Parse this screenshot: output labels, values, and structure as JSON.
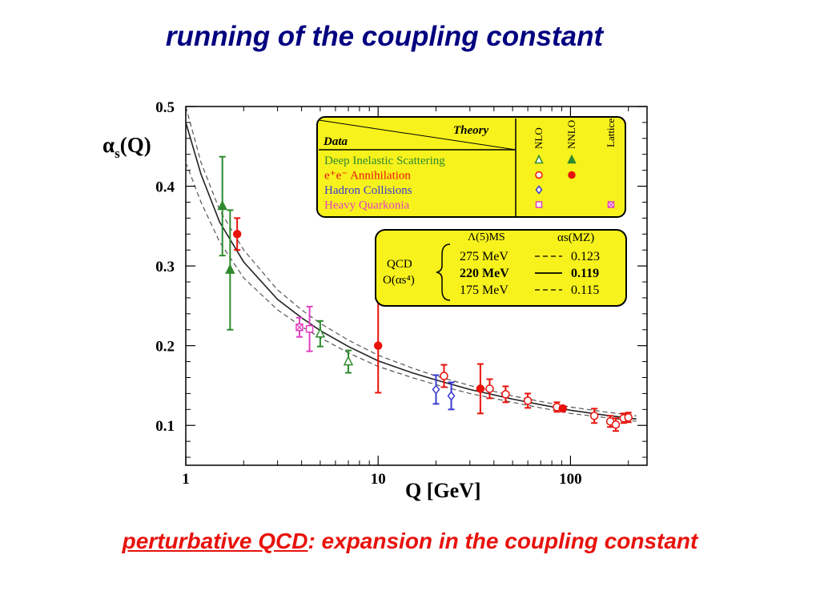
{
  "slide": {
    "title": "running of the coupling constant",
    "caption_underlined": "perturbative QCD",
    "caption_rest": ": expansion in the coupling constant"
  },
  "chart_data": {
    "type": "scatter",
    "ylabel": "αs(Q)",
    "xlabel": "Q [GeV]",
    "x_scale": "log",
    "xlim": [
      1,
      250
    ],
    "ylim": [
      0.05,
      0.5
    ],
    "x_ticks": [
      {
        "value": 1,
        "label": "1"
      },
      {
        "value": 10,
        "label": "10"
      },
      {
        "value": 100,
        "label": "100"
      }
    ],
    "y_ticks": [
      {
        "value": 0.1,
        "label": "0.1"
      },
      {
        "value": 0.2,
        "label": "0.2"
      },
      {
        "value": 0.3,
        "label": "0.3"
      },
      {
        "value": 0.4,
        "label": "0.4"
      },
      {
        "value": 0.5,
        "label": "0.5"
      }
    ],
    "legend_placement": "top-right",
    "legend": {
      "header_data": "Data",
      "header_theory": "Theory",
      "columns": [
        "NLO",
        "NNLO",
        "Lattice"
      ],
      "rows": [
        {
          "label": "Deep Inelastic Scattering",
          "color": "#2e8b2e",
          "markers": [
            "open-triangle",
            "filled-triangle",
            ""
          ]
        },
        {
          "label": "e⁺e⁻ Annihilation",
          "color": "#e8120c",
          "markers": [
            "open-circle",
            "filled-circle",
            ""
          ]
        },
        {
          "label": "Hadron Collisions",
          "color": "#3a3ad0",
          "markers": [
            "open-diamond",
            "",
            ""
          ]
        },
        {
          "label": "Heavy Quarkonia",
          "color": "#e040c0",
          "markers": [
            "open-square",
            "",
            "crossed-square"
          ]
        }
      ]
    },
    "qcd_box": {
      "label_line1": "QCD",
      "label_line2": "O(αs⁴)",
      "col1_header": "Λ(5)MS",
      "col2_header": "αs(MZ)",
      "rows": [
        {
          "lambda": "275 MeV",
          "style": "dashed",
          "alpha": "0.123",
          "bold": false
        },
        {
          "lambda": "220 MeV",
          "style": "solid",
          "alpha": "0.119",
          "bold": true
        },
        {
          "lambda": "175 MeV",
          "style": "dashed",
          "alpha": "0.115",
          "bold": false
        }
      ]
    },
    "curves": [
      {
        "name": "275 MeV",
        "style": "dashed",
        "points": [
          [
            1.0,
            0.5
          ],
          [
            1.2,
            0.43
          ],
          [
            1.5,
            0.37
          ],
          [
            2,
            0.32
          ],
          [
            3,
            0.27
          ],
          [
            4,
            0.245
          ],
          [
            5,
            0.228
          ],
          [
            7,
            0.207
          ],
          [
            10,
            0.188
          ],
          [
            15,
            0.172
          ],
          [
            20,
            0.162
          ],
          [
            30,
            0.15
          ],
          [
            50,
            0.137
          ],
          [
            70,
            0.13
          ],
          [
            100,
            0.123
          ],
          [
            150,
            0.117
          ],
          [
            220,
            0.112
          ]
        ]
      },
      {
        "name": "220 MeV",
        "style": "solid",
        "points": [
          [
            1.0,
            0.48
          ],
          [
            1.2,
            0.415
          ],
          [
            1.5,
            0.355
          ],
          [
            2,
            0.305
          ],
          [
            3,
            0.258
          ],
          [
            4,
            0.235
          ],
          [
            5,
            0.219
          ],
          [
            7,
            0.199
          ],
          [
            10,
            0.181
          ],
          [
            15,
            0.166
          ],
          [
            20,
            0.157
          ],
          [
            30,
            0.145
          ],
          [
            50,
            0.133
          ],
          [
            70,
            0.126
          ],
          [
            100,
            0.119
          ],
          [
            150,
            0.113
          ],
          [
            220,
            0.108
          ]
        ]
      },
      {
        "name": "175 MeV",
        "style": "dashed",
        "points": [
          [
            1.0,
            0.43
          ],
          [
            1.2,
            0.38
          ],
          [
            1.5,
            0.33
          ],
          [
            2,
            0.285
          ],
          [
            3,
            0.245
          ],
          [
            4,
            0.224
          ],
          [
            5,
            0.21
          ],
          [
            7,
            0.191
          ],
          [
            10,
            0.174
          ],
          [
            15,
            0.16
          ],
          [
            20,
            0.151
          ],
          [
            30,
            0.14
          ],
          [
            50,
            0.129
          ],
          [
            70,
            0.122
          ],
          [
            100,
            0.115
          ],
          [
            150,
            0.11
          ],
          [
            220,
            0.105
          ]
        ]
      }
    ],
    "points": [
      {
        "x": 1.55,
        "y": 0.375,
        "err": 0.062,
        "marker": "filled-triangle",
        "color": "#2e8b2e"
      },
      {
        "x": 1.7,
        "y": 0.295,
        "err": 0.075,
        "marker": "filled-triangle",
        "color": "#2e8b2e"
      },
      {
        "x": 1.85,
        "y": 0.34,
        "err": 0.02,
        "marker": "filled-circle",
        "color": "#e8120c"
      },
      {
        "x": 3.9,
        "y": 0.223,
        "err": 0.012,
        "marker": "crossed-square",
        "color": "#e040c0"
      },
      {
        "x": 4.4,
        "y": 0.221,
        "err": 0.028,
        "marker": "open-square",
        "color": "#e040c0"
      },
      {
        "x": 5.0,
        "y": 0.215,
        "err": 0.016,
        "marker": "open-triangle",
        "color": "#2e8b2e"
      },
      {
        "x": 7.0,
        "y": 0.18,
        "err": 0.014,
        "marker": "open-triangle",
        "color": "#2e8b2e"
      },
      {
        "x": 10.0,
        "y": 0.2,
        "err": 0.059,
        "marker": "filled-circle",
        "color": "#e8120c"
      },
      {
        "x": 20.0,
        "y": 0.145,
        "err": 0.018,
        "marker": "open-diamond",
        "color": "#3a3ad0"
      },
      {
        "x": 22.0,
        "y": 0.162,
        "err": 0.014,
        "marker": "open-circle",
        "color": "#e8120c"
      },
      {
        "x": 24.0,
        "y": 0.137,
        "err": 0.017,
        "marker": "open-diamond",
        "color": "#3a3ad0"
      },
      {
        "x": 34.0,
        "y": 0.146,
        "err": 0.031,
        "marker": "filled-circle",
        "color": "#e8120c"
      },
      {
        "x": 38.0,
        "y": 0.146,
        "err": 0.012,
        "marker": "open-circle",
        "color": "#e8120c"
      },
      {
        "x": 46.0,
        "y": 0.139,
        "err": 0.01,
        "marker": "open-circle",
        "color": "#e8120c"
      },
      {
        "x": 60.0,
        "y": 0.131,
        "err": 0.009,
        "marker": "open-circle",
        "color": "#e8120c"
      },
      {
        "x": 85.0,
        "y": 0.123,
        "err": 0.006,
        "marker": "open-circle",
        "color": "#e8120c"
      },
      {
        "x": 91.2,
        "y": 0.1212,
        "err": 0.003,
        "marker": "filled-circle",
        "color": "#e8120c"
      },
      {
        "x": 133.0,
        "y": 0.112,
        "err": 0.009,
        "marker": "open-circle",
        "color": "#e8120c"
      },
      {
        "x": 161.0,
        "y": 0.105,
        "err": 0.007,
        "marker": "open-circle",
        "color": "#e8120c"
      },
      {
        "x": 172.0,
        "y": 0.101,
        "err": 0.008,
        "marker": "open-circle",
        "color": "#e8120c"
      },
      {
        "x": 189.0,
        "y": 0.109,
        "err": 0.006,
        "marker": "open-circle",
        "color": "#e8120c"
      },
      {
        "x": 200.0,
        "y": 0.11,
        "err": 0.006,
        "marker": "open-circle",
        "color": "#e8120c"
      }
    ]
  }
}
